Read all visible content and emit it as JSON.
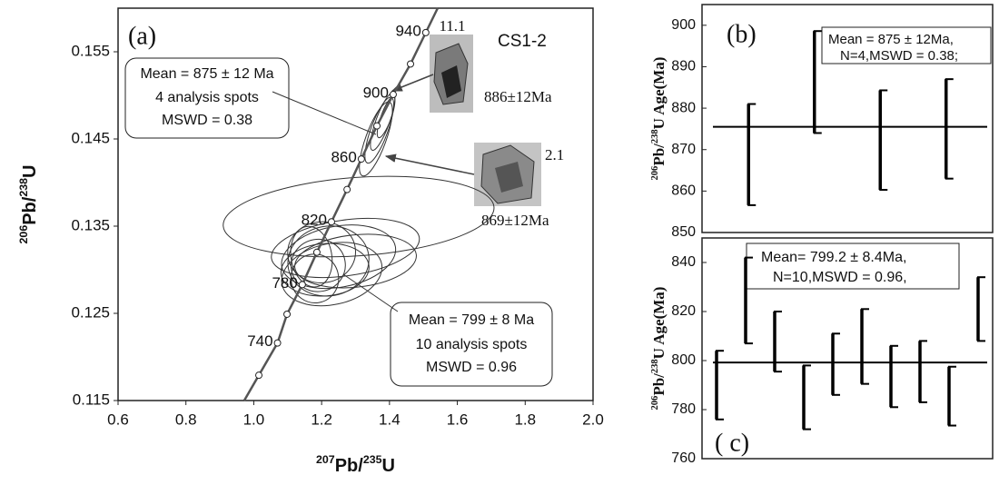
{
  "chart_data": [
    {
      "type": "concordia",
      "title": "(a)",
      "sample": "CS1-2",
      "x_label": [
        "207",
        "Pb/",
        "235",
        "U"
      ],
      "y_label": [
        "206",
        "Pb/",
        "238",
        "U"
      ],
      "xlim": [
        0.6,
        2.0
      ],
      "xticks": [
        0.6,
        0.8,
        {
          "value": 1,
          "label": "1.0"
        },
        1.2,
        1.4,
        1.6,
        1.8,
        {
          "value": 2,
          "label": "2.0"
        }
      ],
      "ylim": [
        0.115,
        0.16
      ],
      "yticks": [
        0.115,
        0.125,
        0.135,
        0.145,
        0.155
      ],
      "line_color": "#555555",
      "concordia": {
        "x": [
          1.015,
          1.07,
          1.098,
          1.143,
          1.186,
          1.229,
          1.275,
          1.317,
          1.363,
          1.411,
          1.462,
          1.507
        ],
        "y": [
          0.1179,
          0.1216,
          0.1249,
          0.1283,
          0.132,
          0.1355,
          0.1392,
          0.1427,
          0.1465,
          0.1501,
          0.1536,
          0.1572
        ],
        "labels": [
          null,
          740,
          null,
          780,
          null,
          820,
          null,
          860,
          null,
          900,
          null,
          940
        ]
      },
      "ellipses": [
        {
          "cx": 1.309,
          "cy": 0.1361,
          "rx": 0.4,
          "ry": 0.0045,
          "angle": -4
        },
        {
          "cx": 1.37,
          "cy": 0.146,
          "rx": 0.025,
          "ry": 0.004,
          "angle": 20
        },
        {
          "cx": 1.38,
          "cy": 0.147,
          "rx": 0.02,
          "ry": 0.0035,
          "angle": 20
        },
        {
          "cx": 1.36,
          "cy": 0.145,
          "rx": 0.03,
          "ry": 0.0045,
          "angle": 20
        },
        {
          "cx": 1.39,
          "cy": 0.1475,
          "rx": 0.015,
          "ry": 0.0025,
          "angle": 20
        },
        {
          "cx": 1.27,
          "cy": 0.1325,
          "rx": 0.22,
          "ry": 0.0032,
          "angle": -8
        },
        {
          "cx": 1.25,
          "cy": 0.1315,
          "rx": 0.17,
          "ry": 0.0035,
          "angle": -10
        },
        {
          "cx": 1.22,
          "cy": 0.131,
          "rx": 0.12,
          "ry": 0.004,
          "angle": -10
        },
        {
          "cx": 1.2,
          "cy": 0.132,
          "rx": 0.1,
          "ry": 0.0035,
          "angle": -5
        },
        {
          "cx": 1.19,
          "cy": 0.1305,
          "rx": 0.08,
          "ry": 0.003,
          "angle": -10
        },
        {
          "cx": 1.21,
          "cy": 0.13,
          "rx": 0.13,
          "ry": 0.003,
          "angle": -5
        },
        {
          "cx": 1.18,
          "cy": 0.129,
          "rx": 0.07,
          "ry": 0.0028,
          "angle": -10
        },
        {
          "cx": 1.23,
          "cy": 0.1295,
          "rx": 0.15,
          "ry": 0.0035,
          "angle": -12
        },
        {
          "cx": 1.3,
          "cy": 0.131,
          "rx": 0.18,
          "ry": 0.003,
          "angle": -6
        },
        {
          "cx": 1.17,
          "cy": 0.1315,
          "rx": 0.06,
          "ry": 0.0035,
          "angle": -10
        }
      ],
      "annotations": [
        {
          "lines": [
            "Mean = 875 ± 12 Ma",
            "4 analysis spots",
            "MSWD = 0.38"
          ]
        },
        {
          "lines": [
            "Mean = 799 ± 8 Ma",
            "10 analysis spots",
            "MSWD = 0.96"
          ]
        }
      ],
      "grains": [
        {
          "spot": "11.1",
          "age": "886±12Ma"
        },
        {
          "spot": "2.1",
          "age": "869±12Ma"
        }
      ]
    },
    {
      "type": "errorbar",
      "title": "(b)",
      "y_label": [
        "206",
        "Pb/",
        "238",
        "U",
        " Age(Ma)"
      ],
      "ylim": [
        850,
        905
      ],
      "yticks": [
        850,
        860,
        870,
        880,
        890,
        900
      ],
      "values": [
        868.8,
        886.3,
        872.3,
        875
      ],
      "errors": [
        12.2,
        12.3,
        12,
        12
      ],
      "mean": 875.5,
      "color": "#000000",
      "annotation": [
        "Mean = 875 ± 12Ma,",
        "N=4,MSWD = 0.38;"
      ]
    },
    {
      "type": "errorbar",
      "title": "( c)",
      "y_label": [
        "206",
        "Pb/",
        "238",
        "U",
        " Age(Ma)"
      ],
      "ylim": [
        760,
        850
      ],
      "yticks": [
        760,
        780,
        800,
        820,
        840
      ],
      "values": [
        790,
        824.5,
        807.75,
        785,
        798.5,
        805.75,
        793.5,
        795.5,
        785.5,
        821
      ],
      "errors": [
        14,
        17.5,
        12.25,
        13,
        12.5,
        15.25,
        12.5,
        12.5,
        12,
        13
      ],
      "mean": 799.2,
      "color": "#000000",
      "annotation": [
        "Mean= 799.2 ± 8.4Ma,",
        "N=10,MSWD = 0.96,"
      ]
    }
  ]
}
